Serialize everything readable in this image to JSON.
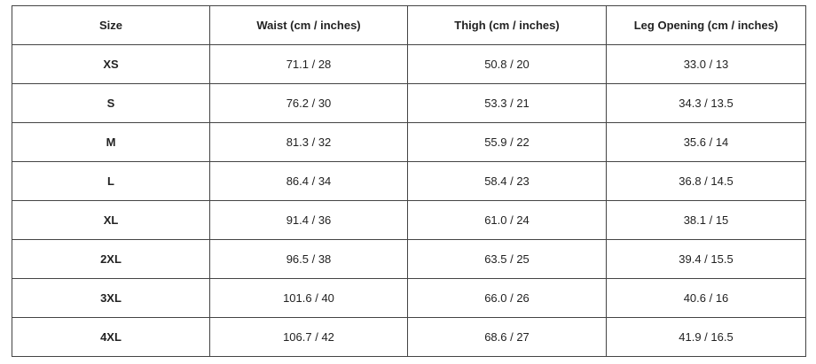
{
  "table": {
    "header": [
      "Size",
      "Waist (cm / inches)",
      "Thigh (cm / inches)",
      "Leg Opening (cm / inches)"
    ],
    "rows": [
      [
        "XS",
        "71.1 / 28",
        "50.8 / 20",
        "33.0 / 13"
      ],
      [
        "S",
        "76.2 / 30",
        "53.3 / 21",
        "34.3 / 13.5"
      ],
      [
        "M",
        "81.3 / 32",
        "55.9 / 22",
        "35.6 / 14"
      ],
      [
        "L",
        "86.4 / 34",
        "58.4 / 23",
        "36.8 / 14.5"
      ],
      [
        "XL",
        "91.4 / 36",
        "61.0 / 24",
        "38.1 / 15"
      ],
      [
        "2XL",
        "96.5 / 38",
        "63.5 / 25",
        "39.4 / 15.5"
      ],
      [
        "3XL",
        "101.6 / 40",
        "66.0 / 26",
        "40.6 / 16"
      ],
      [
        "4XL",
        "106.7 / 42",
        "68.6 / 27",
        "41.9 / 16.5"
      ]
    ]
  }
}
